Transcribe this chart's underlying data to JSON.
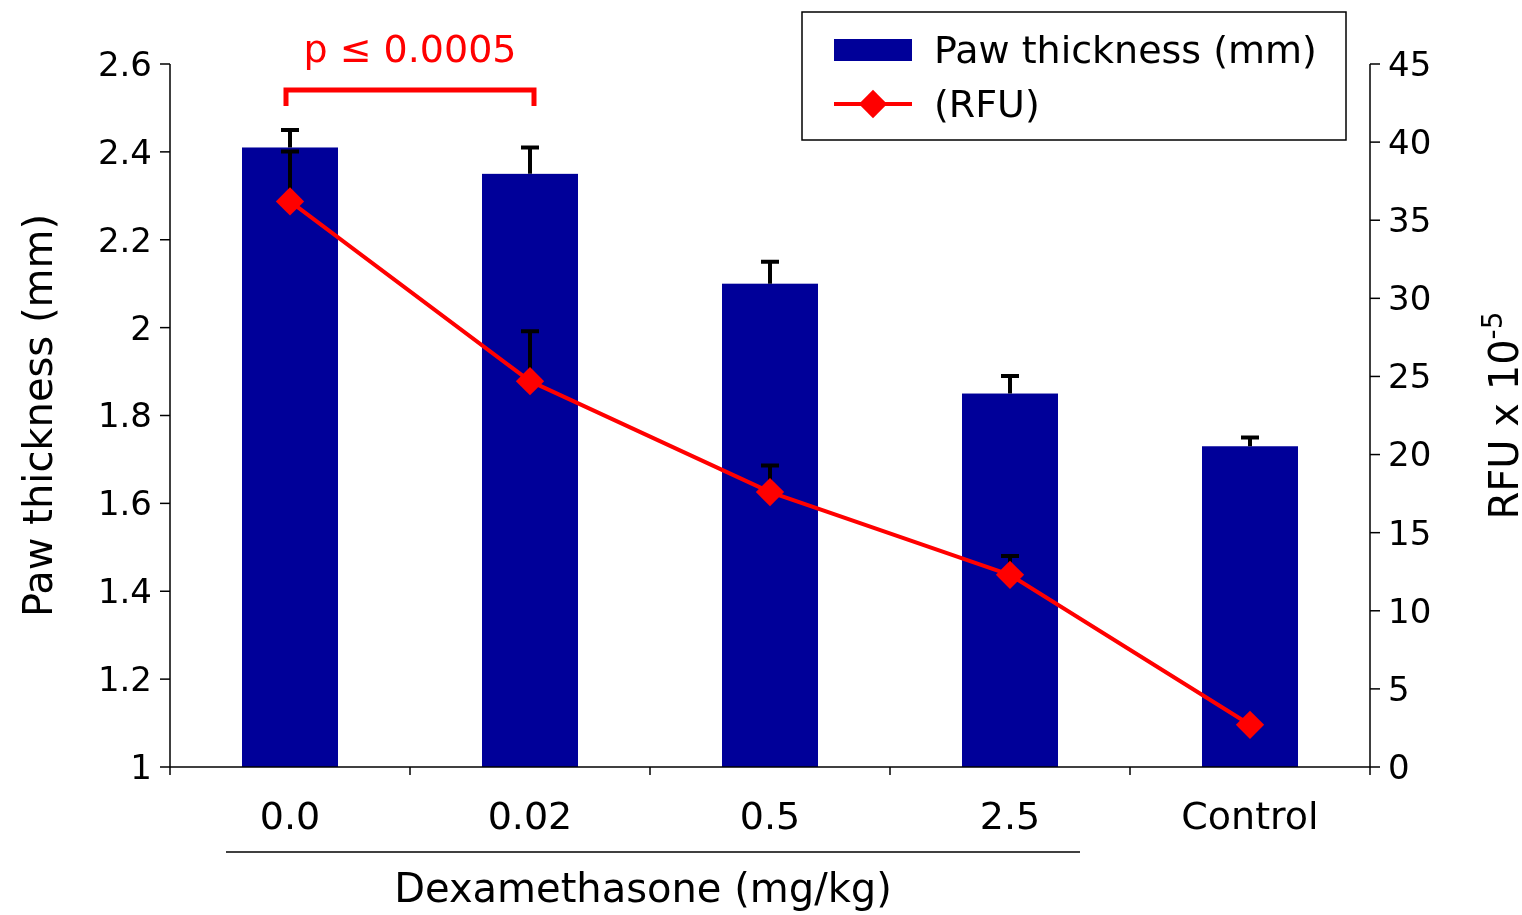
{
  "chart_data": {
    "type": "bar",
    "categories": [
      "0.0",
      "0.02",
      "0.5",
      "2.5",
      "Control"
    ],
    "xlabel": "Dexamethasone (mg/kg)",
    "ylabel": "Paw thickness (mm)",
    "y2label": "RFU x 10$^{-5}$",
    "ylim": [
      1,
      2.6
    ],
    "yticks": [
      1,
      1.2,
      1.4,
      1.6,
      1.8,
      2,
      2.2,
      2.4,
      2.6
    ],
    "y2lim": [
      0,
      45
    ],
    "y2ticks": [
      0,
      5,
      10,
      15,
      20,
      25,
      30,
      35,
      40,
      45
    ],
    "series": [
      {
        "name": "Paw thickness (mm)",
        "color": "#000099",
        "values": [
          2.41,
          2.35,
          2.1,
          1.85,
          1.73
        ],
        "errors": [
          [
            2.41,
            2.45
          ],
          [
            2.35,
            2.41
          ],
          [
            2.1,
            2.15
          ],
          [
            1.85,
            1.89
          ],
          [
            1.73,
            1.75
          ]
        ]
      },
      {
        "name": "(RFU)",
        "type": "line",
        "axis": "y2",
        "color": "#ff0000",
        "marker": "diamond",
        "values": [
          36.2,
          24.7,
          17.6,
          12.3,
          2.7
        ],
        "errors": [
          [
            36.2,
            39.4
          ],
          [
            24.7,
            27.9
          ],
          [
            17.6,
            19.3
          ],
          [
            12.3,
            13.5
          ],
          null
        ]
      }
    ],
    "annotations": [
      "p ≤ 0.0005"
    ],
    "legend": "top right",
    "grid": false
  }
}
